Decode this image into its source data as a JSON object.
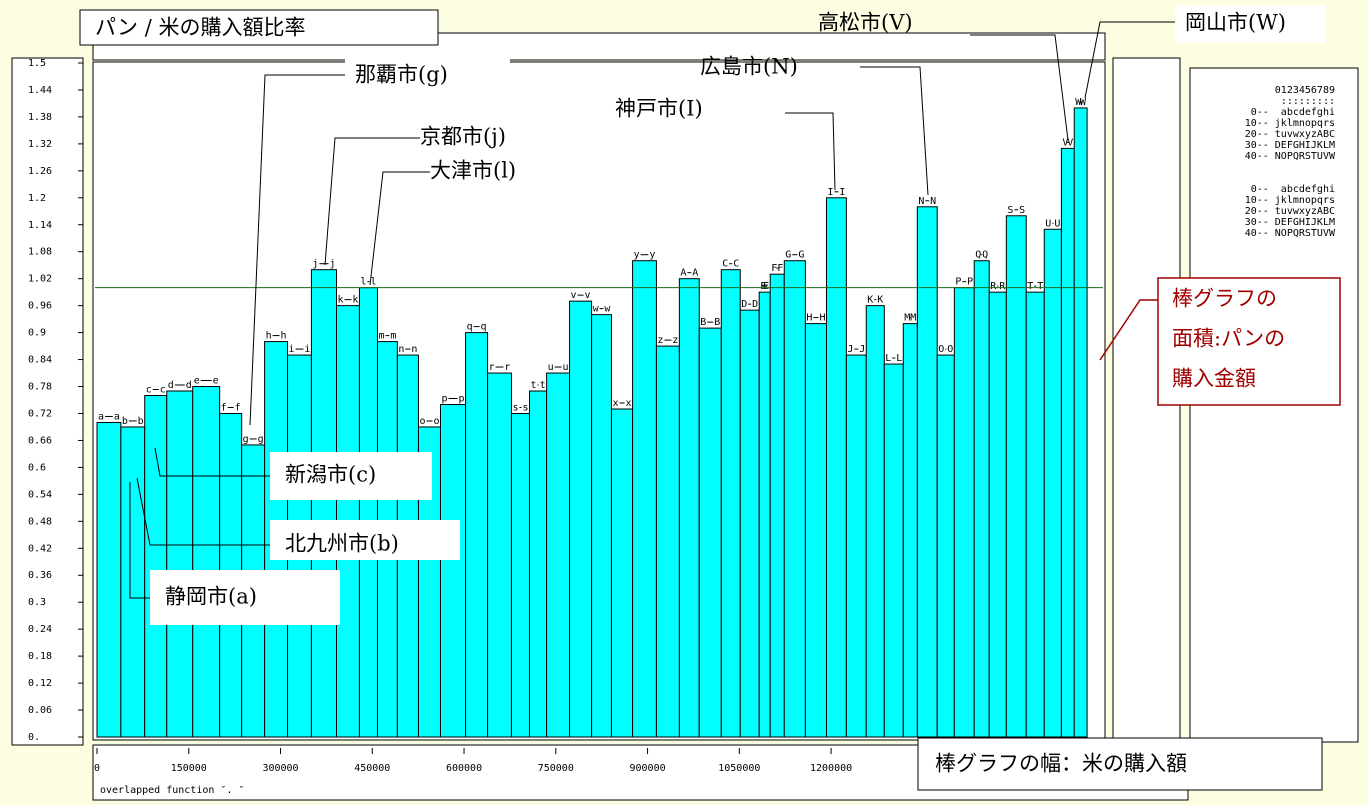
{
  "chart_data": {
    "type": "bar",
    "title": "パン / 米の購入額比率",
    "categories": [
      "a",
      "b",
      "c",
      "d",
      "e",
      "f",
      "g",
      "h",
      "i",
      "j",
      "k",
      "l",
      "m",
      "n",
      "o",
      "p",
      "q",
      "r",
      "s",
      "t",
      "u",
      "v",
      "w",
      "x",
      "y",
      "z",
      "A",
      "B",
      "C",
      "D",
      "E",
      "F",
      "G",
      "H",
      "I",
      "J",
      "K",
      "L",
      "M",
      "N",
      "O",
      "P",
      "Q",
      "R",
      "S",
      "T",
      "U",
      "V",
      "W"
    ],
    "values": [
      0.7,
      0.69,
      0.76,
      0.77,
      0.78,
      0.72,
      0.65,
      0.88,
      0.85,
      1.04,
      0.96,
      1.0,
      0.88,
      0.85,
      0.69,
      0.74,
      0.9,
      0.81,
      0.72,
      0.77,
      0.81,
      0.97,
      0.94,
      0.73,
      1.06,
      0.87,
      1.02,
      0.91,
      1.04,
      0.95,
      0.99,
      1.03,
      1.06,
      0.92,
      1.2,
      0.85,
      0.96,
      0.83,
      0.92,
      1.18,
      0.85,
      1.0,
      1.06,
      0.99,
      1.16,
      0.99,
      1.13,
      1.31,
      1.4
    ],
    "widths": [
      39000,
      39000,
      36000,
      42500,
      44000,
      36000,
      37500,
      37500,
      39000,
      41000,
      37500,
      29500,
      32500,
      34500,
      36000,
      41000,
      36000,
      39000,
      29500,
      28000,
      37500,
      36000,
      32500,
      34500,
      39000,
      37500,
      32500,
      36000,
      31000,
      31000,
      18000,
      23000,
      34500,
      34500,
      32500,
      32500,
      29500,
      31000,
      23000,
      32500,
      28000,
      32500,
      24500,
      28000,
      32500,
      29500,
      28000,
      21000,
      21000
    ],
    "color": "#00ffff",
    "ylim": [
      0,
      1.5
    ],
    "yticks": [
      {
        "value": 0,
        "label": "0."
      },
      0.06,
      0.12,
      0.18,
      0.24,
      0.3,
      0.36,
      0.42,
      0.48,
      0.54,
      0.6,
      0.66,
      0.72,
      0.78,
      0.84,
      0.9,
      0.96,
      1.02,
      1.08,
      1.14,
      1.2,
      1.26,
      1.32,
      1.38,
      1.44,
      1.5
    ],
    "xlim": [
      0,
      1620000
    ],
    "xticks": [
      0,
      150000,
      300000,
      450000,
      600000,
      750000,
      900000,
      1050000,
      1200000
    ],
    "ref_line": 1.0,
    "annotations": [
      "静岡市(a)",
      "北九州市(b)",
      "新潟市(c)",
      "那覇市(g)",
      "京都市(j)",
      "大津市(l)",
      "神戸市(I)",
      "広島市(N)",
      "高松市(V)",
      "岡山市(W)"
    ],
    "area_note": [
      "棒グラフの",
      "面積:パンの",
      "購入金額"
    ],
    "width_note": "棒グラフの幅：米の購入額",
    "footer": "overlapped  function  ″.     ″",
    "legend_panel": [
      "0123456789",
      ":::::::::",
      "0--  abcdefghi",
      "10-- jklmnopqrs",
      "20-- tuvwxyzABC",
      "30-- DEFGHIJKLM",
      "40-- NOPQRSTUVW",
      "0--  abcdefghi",
      "10-- jklmnopqrs",
      "20-- tuvwxyzABC",
      "30-- DEFGHIJKLM",
      "40-- NOPQRSTUVW"
    ]
  }
}
